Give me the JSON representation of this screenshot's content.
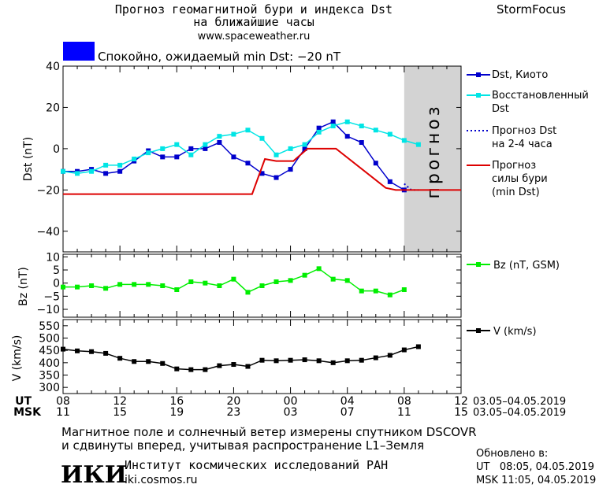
{
  "header": {
    "title_line1": "Прогноз геомагнитной бури и индекса Dst",
    "title_line2": "на ближайшие часы",
    "website": "www.spaceweather.ru",
    "brand": "StormFocus",
    "status_text": "Спокойно, ожидаемый min Dst: −20 nT",
    "status_color": "#0000ff"
  },
  "chart_data": [
    {
      "type": "line",
      "panel": "dst",
      "ylabel": "Dst (nT)",
      "ylim": [
        -50,
        40
      ],
      "yticks": [
        40,
        20,
        0,
        -20,
        -40
      ],
      "xlim": [
        8,
        36
      ],
      "forecast_region": {
        "x": [
          32,
          36
        ],
        "label": "прогноз"
      },
      "series": [
        {
          "name": "Dst, Киото",
          "color": "#0000cc",
          "x": [
            8,
            9,
            10,
            11,
            12,
            13,
            14,
            15,
            16,
            17,
            18,
            19,
            20,
            21,
            22,
            23,
            24,
            25,
            26,
            27,
            28,
            29,
            30,
            31,
            32
          ],
          "y": [
            -11,
            -11,
            -10,
            -12,
            -11,
            -6,
            -1,
            -4,
            -4,
            0,
            0,
            3,
            -4,
            -7,
            -12,
            -14,
            -10,
            0,
            10,
            13,
            6,
            3,
            -7,
            -16,
            -20
          ]
        },
        {
          "name": "Восстановленный Dst",
          "color": "#00e5e5",
          "x": [
            8,
            9,
            10,
            11,
            12,
            13,
            14,
            15,
            16,
            17,
            18,
            19,
            20,
            21,
            22,
            23,
            24,
            25,
            26,
            27,
            28,
            29,
            30,
            31,
            32,
            33
          ],
          "y": [
            -11,
            -12,
            -11,
            -8,
            -8,
            -5,
            -2,
            0,
            2,
            -3,
            2,
            6,
            7,
            9,
            5,
            -3,
            0,
            2,
            8,
            11,
            13,
            11,
            9,
            7,
            4,
            2
          ]
        },
        {
          "name": "Прогноз Dst на 2-4 часа",
          "color": "#0000cc",
          "x": [
            32,
            32.5,
            33
          ],
          "y": [
            -17,
            -20,
            -20
          ]
        },
        {
          "name": "Прогноз силы бури (min Dst)",
          "color": "#dd0000",
          "x": [
            8,
            21.3,
            22.2,
            23,
            24.2,
            25.2,
            27.2,
            30.7,
            31.4,
            36
          ],
          "y": [
            -22,
            -22,
            -5,
            -6,
            -6,
            0,
            0,
            -19,
            -20,
            -20
          ]
        }
      ],
      "legend_text": {
        "dst_kyoto": "Dst, Киото",
        "restored_1": "Восстановленный",
        "restored_2": "Dst",
        "forecast_1": "Прогноз Dst",
        "forecast_2": "на 2-4 часа",
        "strength_1": "Прогноз",
        "strength_2": "силы бури",
        "strength_3": "(min Dst)"
      }
    },
    {
      "type": "line",
      "panel": "bz",
      "ylabel": "Bz (nT)",
      "ylim": [
        -13,
        11
      ],
      "yticks": [
        10,
        5,
        0,
        -5,
        -10
      ],
      "xlim": [
        8,
        36
      ],
      "series": [
        {
          "name": "Bz (nT, GSM)",
          "color": "#00ee00",
          "x": [
            8,
            9,
            10,
            11,
            12,
            13,
            14,
            15,
            16,
            17,
            18,
            19,
            20,
            21,
            22,
            23,
            24,
            25,
            26,
            27,
            28,
            29,
            30,
            31,
            32,
            33
          ],
          "y": [
            -1.5,
            -1.5,
            -1,
            -2,
            -0.5,
            -0.5,
            -0.5,
            -1,
            -2.5,
            0.5,
            0,
            -1,
            1.5,
            -3.5,
            -1,
            0.5,
            1,
            3,
            5.5,
            1.5,
            1,
            -3,
            -3,
            -4.5,
            -2.5,
            null
          ]
        }
      ],
      "legend_text": {
        "bz": "Bz (nT, GSM)"
      }
    },
    {
      "type": "line",
      "panel": "v",
      "ylabel": "V (km/s)",
      "ylim": [
        275,
        575
      ],
      "yticks": [
        550,
        500,
        450,
        400,
        350,
        300
      ],
      "xlim": [
        8,
        36
      ],
      "series": [
        {
          "name": "V (km/s)",
          "color": "#000000",
          "x": [
            8,
            9,
            10,
            11,
            12,
            13,
            14,
            15,
            16,
            17,
            18,
            19,
            20,
            21,
            22,
            23,
            24,
            25,
            26,
            27,
            28,
            29,
            30,
            31,
            32,
            33
          ],
          "y": [
            455,
            448,
            445,
            438,
            418,
            405,
            405,
            397,
            375,
            372,
            372,
            388,
            393,
            385,
            410,
            408,
            410,
            412,
            408,
            400,
            408,
            410,
            420,
            430,
            452,
            465
          ]
        }
      ],
      "legend_text": {
        "v": "V (km/s)"
      }
    }
  ],
  "time_axis": {
    "ut_label": "UT",
    "msk_label": "MSK",
    "ut_ticks": [
      "08",
      "12",
      "16",
      "20",
      "00",
      "04",
      "08",
      "12"
    ],
    "msk_ticks": [
      "11",
      "15",
      "19",
      "23",
      "03",
      "07",
      "11",
      "15"
    ],
    "tick_x": [
      8,
      12,
      16,
      20,
      24,
      28,
      32,
      36
    ],
    "date_range_ut": "03.05–04.05.2019",
    "date_range_msk": "03.05–04.05.2019"
  },
  "footer": {
    "note_line1": "Магнитное поле и солнечный ветер измерены спутником DSCOVR",
    "note_line2": "и сдвинуты вперед, учитывая распространение L1–Земля",
    "logo_text": "ИКИ",
    "institute": "Институт космических исследований РАН",
    "institute_url": "iki.cosmos.ru",
    "updated_label": "Обновлено в:",
    "updated_ut": "UT   08:05, 04.05.2019",
    "updated_msk": "MSK 11:05, 04.05.2019"
  }
}
